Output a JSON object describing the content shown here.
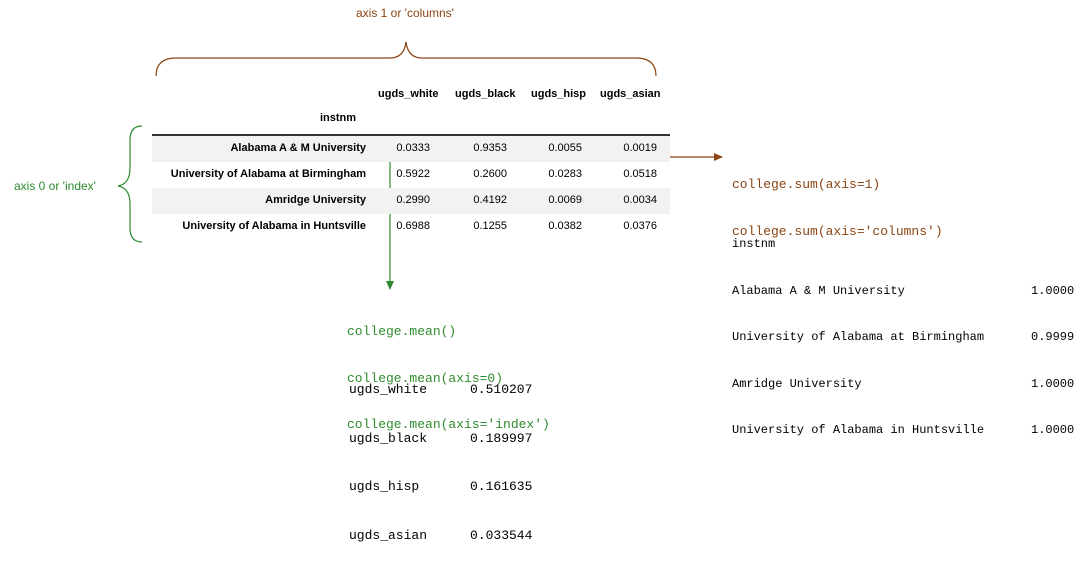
{
  "labels": {
    "axis1": "axis 1 or 'columns'",
    "axis0": "axis 0 or 'index'"
  },
  "table": {
    "index_name": "instnm",
    "columns": [
      "ugds_white",
      "ugds_black",
      "ugds_hisp",
      "ugds_asian"
    ],
    "rows": [
      {
        "name": "Alabama A & M University",
        "values": [
          "0.0333",
          "0.9353",
          "0.0055",
          "0.0019"
        ]
      },
      {
        "name": "University of Alabama at Birmingham",
        "values": [
          "0.5922",
          "0.2600",
          "0.0283",
          "0.0518"
        ]
      },
      {
        "name": "Amridge University",
        "values": [
          "0.2990",
          "0.4192",
          "0.0069",
          "0.0034"
        ]
      },
      {
        "name": "University of Alabama in Huntsville",
        "values": [
          "0.6988",
          "0.1255",
          "0.0382",
          "0.0376"
        ]
      }
    ]
  },
  "mean_code": [
    "college.mean()",
    "college.mean(axis=0)",
    "college.mean(axis='index')"
  ],
  "mean_output": [
    {
      "key": "ugds_white",
      "value": "0.510207"
    },
    {
      "key": "ugds_black",
      "value": "0.189997"
    },
    {
      "key": "ugds_hisp",
      "value": "0.161635"
    },
    {
      "key": "ugds_asian",
      "value": "0.033544"
    }
  ],
  "sum_code": [
    "college.sum(axis=1)",
    "college.sum(axis='columns')"
  ],
  "sum_output_header": "instnm",
  "sum_output": [
    {
      "key": "Alabama A & M University",
      "value": "1.0000"
    },
    {
      "key": "University of Alabama at Birmingham",
      "value": "0.9999"
    },
    {
      "key": "Amridge University",
      "value": "1.0000"
    },
    {
      "key": "University of Alabama in Huntsville",
      "value": "1.0000"
    }
  ],
  "colors": {
    "brown": "#8b4513",
    "green": "#2e8b2e"
  }
}
